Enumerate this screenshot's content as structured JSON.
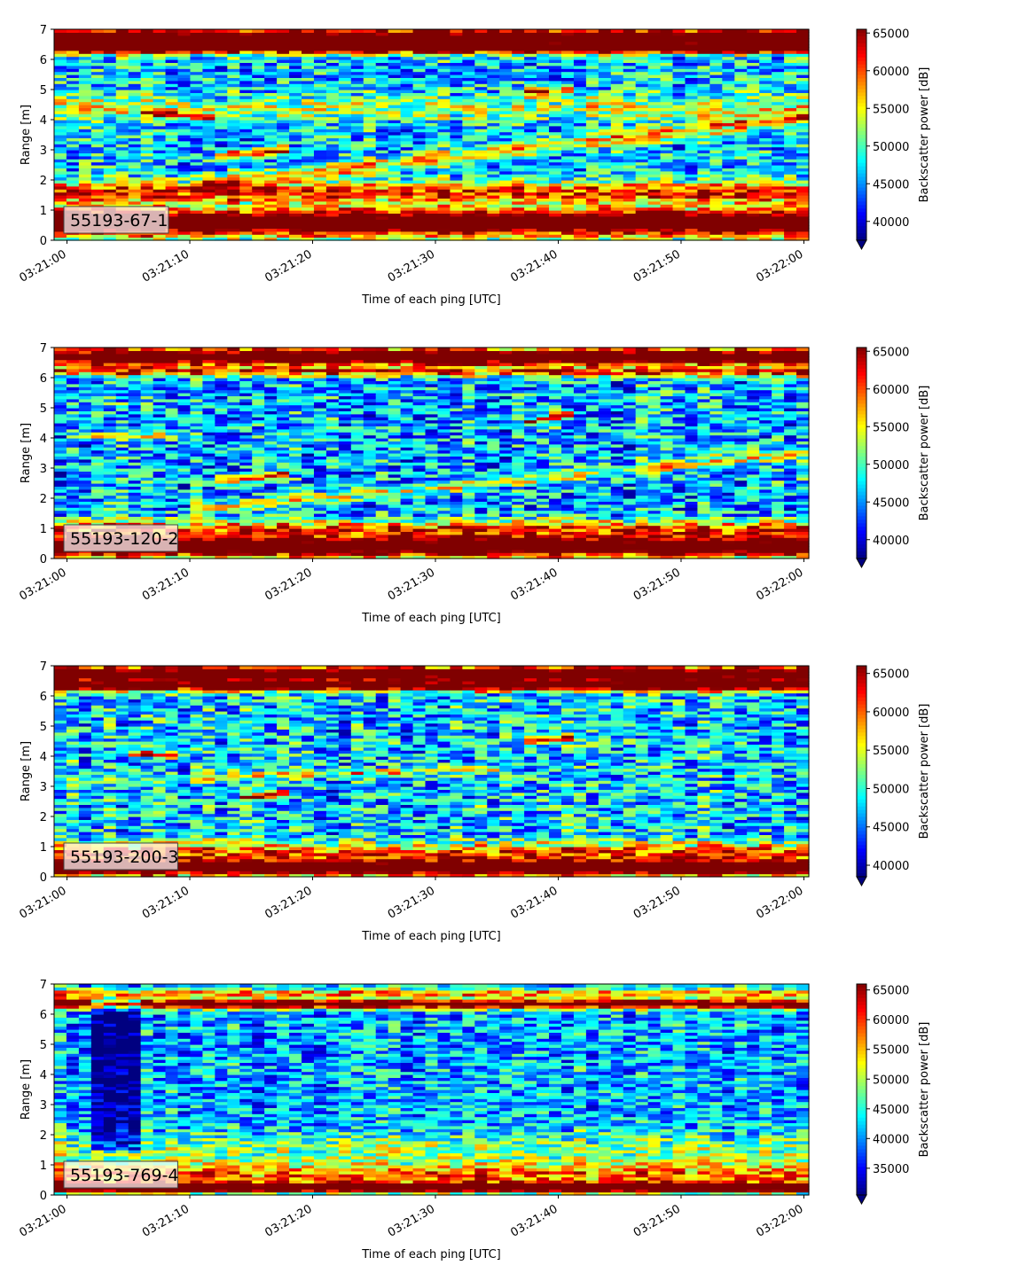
{
  "chart_data": [
    {
      "type": "heatmap",
      "title": "",
      "label": "55193-67-1",
      "xlabel": "Time of each ping [UTC]",
      "ylabel": "Range [m]",
      "ylim": [
        0,
        7
      ],
      "xlim": [
        "03:21:00",
        "03:22:00"
      ],
      "y_ticks": [
        0,
        1,
        2,
        3,
        4,
        5,
        6,
        7
      ],
      "x_ticks": [
        "03:21:00",
        "03:21:10",
        "03:21:20",
        "03:21:30",
        "03:21:40",
        "03:21:50",
        "03:22:00"
      ],
      "colorbar": {
        "label": "Backscatter power [dB]",
        "vmin": 37500,
        "vmax": 65500,
        "ticks": [
          40000,
          45000,
          50000,
          55000,
          60000,
          65000
        ],
        "extend": "min",
        "colormap": "jet"
      },
      "features": [
        {
          "kind": "band",
          "y": 6.7,
          "strength": 1.0,
          "width": 0.35
        },
        {
          "kind": "band",
          "y": 6.35,
          "strength": 0.55,
          "width": 0.15
        },
        {
          "kind": "band",
          "y": 0.6,
          "strength": 1.0,
          "width": 0.45
        },
        {
          "kind": "band",
          "y": 1.6,
          "strength": 0.55,
          "width": 0.35
        },
        {
          "kind": "band",
          "y": 4.4,
          "strength": 0.25,
          "width": 0.4
        },
        {
          "kind": "trend",
          "t0": 10,
          "y0": 1.8,
          "t1": 60,
          "y1": 4.1,
          "strength": 0.35,
          "width": 0.25
        },
        {
          "kind": "trend",
          "t0": 6,
          "y0": 4.25,
          "t1": 12,
          "y1": 4.1,
          "strength": 0.45,
          "width": 0.12
        },
        {
          "kind": "trend",
          "t0": 12,
          "y0": 2.8,
          "t1": 18,
          "y1": 3.0,
          "strength": 0.6,
          "width": 0.15
        },
        {
          "kind": "trend",
          "t0": 37,
          "y0": 4.9,
          "t1": 41,
          "y1": 5.0,
          "strength": 0.55,
          "width": 0.15
        }
      ],
      "base_level": 0.32,
      "noise": 0.22
    },
    {
      "type": "heatmap",
      "title": "",
      "label": "55193-120-2",
      "xlabel": "Time of each ping [UTC]",
      "ylabel": "Range [m]",
      "ylim": [
        0,
        7
      ],
      "xlim": [
        "03:21:00",
        "03:22:00"
      ],
      "y_ticks": [
        0,
        1,
        2,
        3,
        4,
        5,
        6,
        7
      ],
      "x_ticks": [
        "03:21:00",
        "03:21:10",
        "03:21:20",
        "03:21:30",
        "03:21:40",
        "03:21:50",
        "03:22:00"
      ],
      "colorbar": {
        "label": "Backscatter power [dB]",
        "vmin": 37500,
        "vmax": 65500,
        "ticks": [
          40000,
          45000,
          50000,
          55000,
          60000,
          65000
        ],
        "extend": "min",
        "colormap": "jet"
      },
      "features": [
        {
          "kind": "band",
          "y": 6.7,
          "strength": 1.0,
          "width": 0.3
        },
        {
          "kind": "band",
          "y": 6.2,
          "strength": 0.5,
          "width": 0.15
        },
        {
          "kind": "band",
          "y": 0.4,
          "strength": 1.0,
          "width": 0.35
        },
        {
          "kind": "band",
          "y": 1.0,
          "strength": 0.5,
          "width": 0.3
        },
        {
          "kind": "trend",
          "t0": 10,
          "y0": 1.6,
          "t1": 60,
          "y1": 3.5,
          "strength": 0.3,
          "width": 0.2
        },
        {
          "kind": "trend",
          "t0": 1,
          "y0": 4.1,
          "t1": 9,
          "y1": 4.05,
          "strength": 0.5,
          "width": 0.1
        },
        {
          "kind": "trend",
          "t0": 12,
          "y0": 2.6,
          "t1": 18,
          "y1": 2.8,
          "strength": 0.55,
          "width": 0.12
        },
        {
          "kind": "trend",
          "t0": 37,
          "y0": 4.5,
          "t1": 41,
          "y1": 4.8,
          "strength": 0.6,
          "width": 0.12
        }
      ],
      "base_level": 0.3,
      "noise": 0.24
    },
    {
      "type": "heatmap",
      "title": "",
      "label": "55193-200-3",
      "xlabel": "Time of each ping [UTC]",
      "ylabel": "Range [m]",
      "ylim": [
        0,
        7
      ],
      "xlim": [
        "03:21:00",
        "03:22:00"
      ],
      "y_ticks": [
        0,
        1,
        2,
        3,
        4,
        5,
        6,
        7
      ],
      "x_ticks": [
        "03:21:00",
        "03:21:10",
        "03:21:20",
        "03:21:30",
        "03:21:40",
        "03:21:50",
        "03:22:00"
      ],
      "colorbar": {
        "label": "Backscatter power [dB]",
        "vmin": 38500,
        "vmax": 66000,
        "ticks": [
          40000,
          45000,
          50000,
          55000,
          60000,
          65000
        ],
        "extend": "min",
        "colormap": "jet"
      },
      "features": [
        {
          "kind": "band",
          "y": 6.75,
          "strength": 0.95,
          "width": 0.25
        },
        {
          "kind": "band",
          "y": 6.35,
          "strength": 0.85,
          "width": 0.18
        },
        {
          "kind": "band",
          "y": 0.3,
          "strength": 1.0,
          "width": 0.25
        },
        {
          "kind": "band",
          "y": 0.8,
          "strength": 0.5,
          "width": 0.35
        },
        {
          "kind": "trend",
          "t0": 10,
          "y0": 3.3,
          "t1": 35,
          "y1": 3.6,
          "strength": 0.3,
          "width": 0.15
        },
        {
          "kind": "trend",
          "t0": 5,
          "y0": 4.1,
          "t1": 9,
          "y1": 4.05,
          "strength": 0.5,
          "width": 0.1
        },
        {
          "kind": "trend",
          "t0": 14,
          "y0": 2.6,
          "t1": 18,
          "y1": 2.8,
          "strength": 0.55,
          "width": 0.1
        },
        {
          "kind": "trend",
          "t0": 37,
          "y0": 4.5,
          "t1": 41,
          "y1": 4.6,
          "strength": 0.55,
          "width": 0.12
        }
      ],
      "base_level": 0.33,
      "noise": 0.24
    },
    {
      "type": "heatmap",
      "title": "",
      "label": "55193-769-4",
      "xlabel": "Time of each ping [UTC]",
      "ylabel": "Range [m]",
      "ylim": [
        0,
        7
      ],
      "xlim": [
        "03:21:00",
        "03:22:00"
      ],
      "y_ticks": [
        0,
        1,
        2,
        3,
        4,
        5,
        6,
        7
      ],
      "x_ticks": [
        "03:21:00",
        "03:21:10",
        "03:21:20",
        "03:21:30",
        "03:21:40",
        "03:21:50",
        "03:22:00"
      ],
      "colorbar": {
        "label": "Backscatter power [dB]",
        "vmin": 30500,
        "vmax": 66000,
        "ticks": [
          35000,
          40000,
          45000,
          50000,
          55000,
          60000,
          65000
        ],
        "extend": "min",
        "colormap": "jet"
      },
      "features": [
        {
          "kind": "band",
          "y": 6.35,
          "strength": 0.9,
          "width": 0.15
        },
        {
          "kind": "band",
          "y": 6.7,
          "strength": 0.45,
          "width": 0.15
        },
        {
          "kind": "band",
          "y": 0.25,
          "strength": 1.0,
          "width": 0.15
        },
        {
          "kind": "band",
          "y": 0.65,
          "strength": 0.45,
          "width": 0.4
        },
        {
          "kind": "band",
          "y": 1.5,
          "strength": 0.2,
          "width": 0.6
        },
        {
          "kind": "dark",
          "t0": 2,
          "t1": 6.5,
          "y0": 1.5,
          "y1": 6.5,
          "strength": 0.3
        }
      ],
      "base_level": 0.3,
      "noise": 0.2
    }
  ]
}
